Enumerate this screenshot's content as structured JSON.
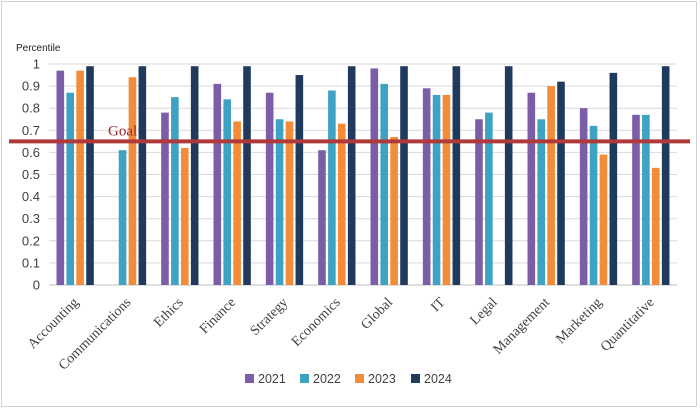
{
  "chart_data": {
    "type": "bar",
    "title": "",
    "ylabel": "Percentile",
    "xlabel": "",
    "ylim": [
      0,
      1
    ],
    "yticks": [
      "0",
      "0.1",
      "0.2",
      "0.3",
      "0.4",
      "0.5",
      "0.6",
      "0.7",
      "0.8",
      "0.9",
      "1"
    ],
    "grid": true,
    "legend_position": "bottom",
    "categories": [
      "Accounting",
      "Communications",
      "Ethics",
      "Finance",
      "Strategy",
      "Economics",
      "Global",
      "IT",
      "Legal",
      "Management",
      "Marketing",
      "Quantitative"
    ],
    "series": [
      {
        "name": "2021",
        "color": "#7b5ea7",
        "values": [
          0.97,
          null,
          0.78,
          0.91,
          0.87,
          0.61,
          0.98,
          0.89,
          0.75,
          0.87,
          0.8,
          0.77
        ]
      },
      {
        "name": "2022",
        "color": "#3ea3c2",
        "values": [
          0.87,
          0.61,
          0.85,
          0.84,
          0.75,
          0.88,
          0.91,
          0.86,
          0.78,
          0.75,
          0.72,
          0.77
        ]
      },
      {
        "name": "2023",
        "color": "#f28c38",
        "values": [
          0.97,
          0.94,
          0.62,
          0.74,
          0.74,
          0.73,
          0.67,
          0.86,
          null,
          0.9,
          0.59,
          0.53
        ]
      },
      {
        "name": "2024",
        "color": "#1f3a5c",
        "values": [
          0.99,
          0.99,
          0.99,
          0.99,
          0.95,
          0.99,
          0.99,
          0.99,
          0.99,
          0.92,
          0.96,
          0.99
        ]
      }
    ],
    "goal": {
      "label": "Goal",
      "value": 0.65,
      "color": "#b03a3a"
    }
  }
}
